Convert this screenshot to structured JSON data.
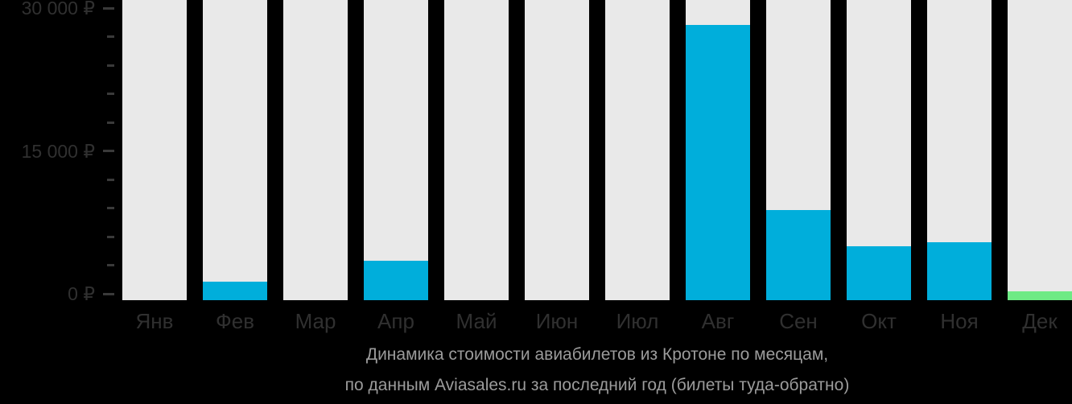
{
  "chart_data": {
    "type": "bar",
    "title": "Динамика стоимости авиабилетов из Кротоне по месяцам",
    "categories": [
      "Янв",
      "Фев",
      "Мар",
      "Апр",
      "Май",
      "Июн",
      "Июл",
      "Авг",
      "Сен",
      "Окт",
      "Ноя",
      "Дек"
    ],
    "values": [
      0,
      1300,
      0,
      3500,
      0,
      0,
      0,
      28200,
      8800,
      5000,
      5400,
      250
    ],
    "currency_symbol": "₽",
    "ylim": [
      0,
      30000
    ],
    "yticks": [
      {
        "value": 30000,
        "label": "30 000 ₽"
      },
      {
        "value": 15000,
        "label": "15 000 ₽"
      },
      {
        "value": 0,
        "label": "0 ₽"
      }
    ],
    "minor_tick_step": 3000,
    "grid": false,
    "legend": null,
    "bar_default_color": "#00AEDB",
    "highlight": {
      "category": "Дек",
      "color": "#6EEA85"
    }
  },
  "caption": {
    "line1": "Динамика стоимости авиабилетов из Кротоне по месяцам,",
    "line2": "по данным Aviasales.ru за последний год (билеты туда-обратно)"
  },
  "colors": {
    "background": "#000000",
    "column_background": "#E9E9E9",
    "bar": "#00AEDB",
    "bar_highlight": "#6EEA85",
    "axis_text": "#303030",
    "tick": "#3A3A3A",
    "caption_text": "#9B9B9B"
  }
}
